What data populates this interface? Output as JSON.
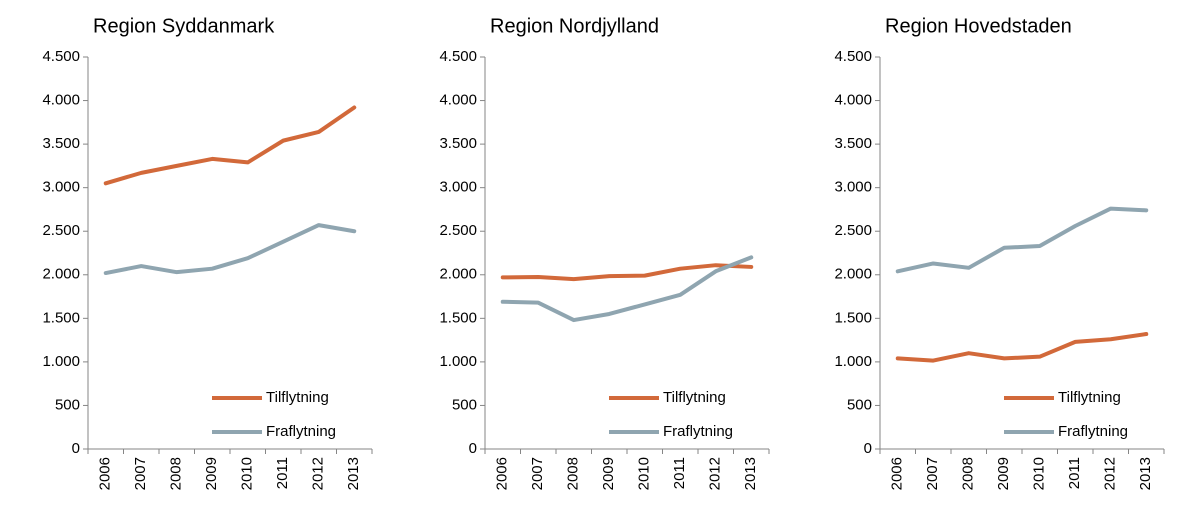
{
  "chart_data": [
    {
      "type": "line",
      "title": "Region Syddanmark",
      "categories": [
        "2006",
        "2007",
        "2008",
        "2009",
        "2010",
        "2011",
        "2012",
        "2013"
      ],
      "series": [
        {
          "name": "Tilflytning",
          "color": "#d2693a",
          "values": [
            3050,
            3170,
            3250,
            3330,
            3290,
            3540,
            3640,
            3920
          ]
        },
        {
          "name": "Fraflytning",
          "color": "#8fa5b0",
          "values": [
            2020,
            2100,
            2030,
            2070,
            2190,
            2380,
            2570,
            2500
          ]
        }
      ],
      "ylim": [
        0,
        4500
      ],
      "yticks": [
        0,
        500,
        {
          "value": 1000,
          "label": "1.000"
        },
        {
          "value": 1500,
          "label": "1.500"
        },
        {
          "value": 2000,
          "label": "2.000"
        },
        {
          "value": 2500,
          "label": "2.500"
        },
        {
          "value": 3000,
          "label": "3.000"
        },
        {
          "value": 3500,
          "label": "3.500"
        },
        {
          "value": 4000,
          "label": "4.000"
        },
        {
          "value": 4500,
          "label": "4.500"
        }
      ],
      "legend": "lower right"
    },
    {
      "type": "line",
      "title": "Region Nordjylland",
      "categories": [
        "2006",
        "2007",
        "2008",
        "2009",
        "2010",
        "2011",
        "2012",
        "2013"
      ],
      "series": [
        {
          "name": "Tilflytning",
          "color": "#d2693a",
          "values": [
            1970,
            1975,
            1950,
            1985,
            1990,
            2070,
            2110,
            2090
          ]
        },
        {
          "name": "Fraflytning",
          "color": "#8fa5b0",
          "values": [
            1690,
            1680,
            1480,
            1550,
            1660,
            1770,
            2040,
            2200
          ]
        }
      ],
      "ylim": [
        0,
        4500
      ],
      "yticks": [
        0,
        500,
        {
          "value": 1000,
          "label": "1.000"
        },
        {
          "value": 1500,
          "label": "1.500"
        },
        {
          "value": 2000,
          "label": "2.000"
        },
        {
          "value": 2500,
          "label": "2.500"
        },
        {
          "value": 3000,
          "label": "3.000"
        },
        {
          "value": 3500,
          "label": "3.500"
        },
        {
          "value": 4000,
          "label": "4.000"
        },
        {
          "value": 4500,
          "label": "4.500"
        }
      ],
      "legend": "lower right"
    },
    {
      "type": "line",
      "title": "Region Hovedstaden",
      "categories": [
        "2006",
        "2007",
        "2008",
        "2009",
        "2010",
        "2011",
        "2012",
        "2013"
      ],
      "series": [
        {
          "name": "Tilflytning",
          "color": "#d2693a",
          "values": [
            1040,
            1015,
            1100,
            1040,
            1060,
            1230,
            1260,
            1320
          ]
        },
        {
          "name": "Fraflytning",
          "color": "#8fa5b0",
          "values": [
            2040,
            2130,
            2080,
            2310,
            2330,
            2560,
            2760,
            2740
          ]
        }
      ],
      "ylim": [
        0,
        4500
      ],
      "yticks": [
        0,
        500,
        {
          "value": 1000,
          "label": "1.000"
        },
        {
          "value": 1500,
          "label": "1.500"
        },
        {
          "value": 2000,
          "label": "2.000"
        },
        {
          "value": 2500,
          "label": "2.500"
        },
        {
          "value": 3000,
          "label": "3.000"
        },
        {
          "value": 3500,
          "label": "3.500"
        },
        {
          "value": 4000,
          "label": "4.000"
        },
        {
          "value": 4500,
          "label": "4.500"
        }
      ],
      "legend": "lower right"
    }
  ]
}
